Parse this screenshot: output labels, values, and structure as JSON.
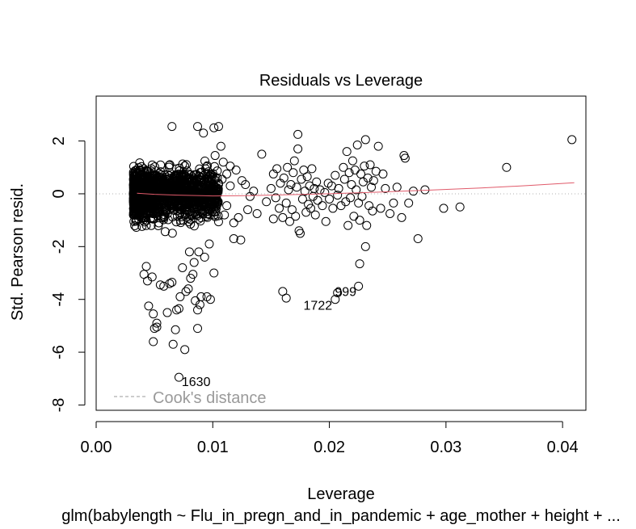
{
  "chart_data": {
    "type": "scatter",
    "title": "Residuals vs Leverage",
    "xlabel": "Leverage",
    "ylabel": "Std. Pearson resid.",
    "subtitle": "glm(babylength ~ Flu_in_pregn_and_in_pandemic + age_mother + height + ...",
    "xlim": [
      0,
      0.042
    ],
    "ylim": [
      -8.2,
      3.7
    ],
    "x_ticks": [
      0.0,
      0.01,
      0.02,
      0.03,
      0.04
    ],
    "x_tick_labels": [
      "0.00",
      "0.01",
      "0.02",
      "0.03",
      "0.04"
    ],
    "y_ticks": [
      -8,
      -6,
      -4,
      -2,
      0,
      2
    ],
    "y_tick_labels": [
      "-8",
      "-6",
      "-4",
      "-2",
      "0",
      "2"
    ],
    "grid": false,
    "legend": {
      "position": "bottom-left",
      "label": "Cook's distance",
      "style": "dashed",
      "color": "#9a9a9a"
    },
    "reference_lines": {
      "h": 0,
      "v": 0,
      "style": "dotted",
      "color": "#b0b0b0"
    },
    "smooth": {
      "color": "#e05a6a",
      "x": [
        0.0035,
        0.005,
        0.007,
        0.01,
        0.013,
        0.016,
        0.02,
        0.024,
        0.028,
        0.033,
        0.037,
        0.041
      ],
      "y": [
        0.02,
        -0.02,
        -0.05,
        -0.08,
        -0.07,
        -0.04,
        0.0,
        0.06,
        0.13,
        0.22,
        0.31,
        0.42
      ]
    },
    "cloud": {
      "description_free": true,
      "n": 1400,
      "x_range": [
        0.0032,
        0.0105
      ],
      "y_center": 0.0,
      "y_sd": 0.85,
      "y_clip": [
        -2.4,
        2.6
      ]
    },
    "points": [
      [
        0.0041,
        -3.05
      ],
      [
        0.0043,
        -2.75
      ],
      [
        0.0044,
        -3.3
      ],
      [
        0.0045,
        -4.25
      ],
      [
        0.0048,
        -3.15
      ],
      [
        0.0049,
        -4.55
      ],
      [
        0.005,
        -5.1
      ],
      [
        0.0052,
        -4.9
      ],
      [
        0.0055,
        -3.45
      ],
      [
        0.0049,
        -5.6
      ],
      [
        0.0058,
        -3.5
      ],
      [
        0.0061,
        -4.5
      ],
      [
        0.0063,
        -3.4
      ],
      [
        0.0065,
        -3.35
      ],
      [
        0.0066,
        -5.7
      ],
      [
        0.0068,
        -5.15
      ],
      [
        0.0069,
        -4.4
      ],
      [
        0.0071,
        -4.35
      ],
      [
        0.0072,
        -3.9
      ],
      [
        0.0074,
        -2.8
      ],
      [
        0.0076,
        -5.9
      ],
      [
        0.0079,
        -3.6
      ],
      [
        0.0081,
        -3.2
      ],
      [
        0.0083,
        -3.05
      ],
      [
        0.0085,
        -4.05
      ],
      [
        0.0087,
        -4.4
      ],
      [
        0.0087,
        -5.1
      ],
      [
        0.0089,
        -4.2
      ],
      [
        0.009,
        -3.9
      ],
      [
        0.0095,
        -3.9
      ],
      [
        0.0098,
        -4.0
      ],
      [
        0.0101,
        -3.0
      ],
      [
        0.0071,
        -6.95
      ],
      [
        0.0052,
        -5.05
      ],
      [
        0.0077,
        -3.7
      ],
      [
        0.008,
        -2.2
      ],
      [
        0.0084,
        -2.6
      ],
      [
        0.0088,
        -2.2
      ],
      [
        0.0093,
        -2.4
      ],
      [
        0.0097,
        -1.9
      ],
      [
        0.0065,
        2.55
      ],
      [
        0.0087,
        2.55
      ],
      [
        0.0092,
        2.3
      ],
      [
        0.0101,
        2.5
      ],
      [
        0.0105,
        2.55
      ],
      [
        0.0107,
        1.8
      ],
      [
        0.0102,
        1.45
      ],
      [
        0.0109,
        1.2
      ],
      [
        0.0112,
        -0.45
      ],
      [
        0.0115,
        0.3
      ],
      [
        0.0118,
        -1.1
      ],
      [
        0.012,
        0.9
      ],
      [
        0.0122,
        -0.9
      ],
      [
        0.0125,
        0.5
      ],
      [
        0.0128,
        0.35
      ],
      [
        0.013,
        -0.6
      ],
      [
        0.0132,
        -0.1
      ],
      [
        0.0135,
        0.1
      ],
      [
        0.0138,
        -0.75
      ],
      [
        0.0112,
        0.75
      ],
      [
        0.0118,
        -1.7
      ],
      [
        0.0124,
        -1.75
      ],
      [
        0.0115,
        1.05
      ],
      [
        0.011,
        -0.8
      ],
      [
        0.0108,
        0.55
      ],
      [
        0.0142,
        1.5
      ],
      [
        0.0146,
        -0.3
      ],
      [
        0.015,
        0.2
      ],
      [
        0.0152,
        0.75
      ],
      [
        0.0154,
        -0.15
      ],
      [
        0.0155,
        0.95
      ],
      [
        0.0157,
        -0.55
      ],
      [
        0.0158,
        0.4
      ],
      [
        0.016,
        -0.9
      ],
      [
        0.0161,
        0.6
      ],
      [
        0.0163,
        -0.35
      ],
      [
        0.0164,
        1.0
      ],
      [
        0.0165,
        0.15
      ],
      [
        0.0166,
        -1.05
      ],
      [
        0.0167,
        0.35
      ],
      [
        0.0168,
        -0.6
      ],
      [
        0.0169,
        0.8
      ],
      [
        0.017,
        1.25
      ],
      [
        0.0171,
        -0.85
      ],
      [
        0.0172,
        0.25
      ],
      [
        0.0173,
        2.25
      ],
      [
        0.0173,
        1.7
      ],
      [
        0.0174,
        -1.4
      ],
      [
        0.0175,
        -1.5
      ],
      [
        0.0176,
        0.55
      ],
      [
        0.0177,
        -0.2
      ],
      [
        0.0178,
        0.9
      ],
      [
        0.0179,
        0.1
      ],
      [
        0.018,
        -0.7
      ],
      [
        0.0181,
        0.65
      ],
      [
        0.0182,
        -0.4
      ],
      [
        0.0183,
        0.3
      ],
      [
        0.0184,
        -0.55
      ],
      [
        0.0185,
        0.95
      ],
      [
        0.0186,
        -0.1
      ],
      [
        0.0187,
        0.2
      ],
      [
        0.0188,
        -0.8
      ],
      [
        0.0189,
        0.45
      ],
      [
        0.019,
        -0.25
      ],
      [
        0.0192,
        0.15
      ],
      [
        0.0194,
        -0.45
      ],
      [
        0.0196,
        0.05
      ],
      [
        0.0197,
        -1.05
      ],
      [
        0.0199,
        0.4
      ],
      [
        0.02,
        -0.2
      ],
      [
        0.0202,
        0.3
      ],
      [
        0.0203,
        -0.55
      ],
      [
        0.0205,
        0.7
      ],
      [
        0.0207,
        -0.05
      ],
      [
        0.0208,
        0.2
      ],
      [
        0.021,
        -0.45
      ],
      [
        0.0212,
        1.0
      ],
      [
        0.0213,
        0.55
      ],
      [
        0.0214,
        -0.3
      ],
      [
        0.0215,
        1.6
      ],
      [
        0.0216,
        -1.2
      ],
      [
        0.0217,
        0.8
      ],
      [
        0.0218,
        -0.15
      ],
      [
        0.0219,
        0.35
      ],
      [
        0.022,
        1.25
      ],
      [
        0.0221,
        -0.85
      ],
      [
        0.0222,
        0.9
      ],
      [
        0.0223,
        0.15
      ],
      [
        0.0224,
        1.85
      ],
      [
        0.0225,
        -0.35
      ],
      [
        0.0226,
        -1.0
      ],
      [
        0.0227,
        0.75
      ],
      [
        0.0228,
        -0.1
      ],
      [
        0.0229,
        0.45
      ],
      [
        0.023,
        1.05
      ],
      [
        0.0231,
        2.05
      ],
      [
        0.0232,
        -1.2
      ],
      [
        0.0233,
        0.6
      ],
      [
        0.0234,
        -0.45
      ],
      [
        0.0235,
        1.1
      ],
      [
        0.0236,
        0.25
      ],
      [
        0.0237,
        -0.65
      ],
      [
        0.0238,
        0.5
      ],
      [
        0.024,
        0.85
      ],
      [
        0.0242,
        1.8
      ],
      [
        0.0244,
        -0.55
      ],
      [
        0.0246,
        0.75
      ],
      [
        0.0248,
        0.2
      ],
      [
        0.0252,
        -0.75
      ],
      [
        0.0255,
        -0.35
      ],
      [
        0.0258,
        0.25
      ],
      [
        0.0262,
        -0.9
      ],
      [
        0.0264,
        1.45
      ],
      [
        0.0265,
        1.35
      ],
      [
        0.0268,
        -0.35
      ],
      [
        0.0272,
        0.1
      ],
      [
        0.0276,
        -1.7
      ],
      [
        0.0282,
        0.15
      ],
      [
        0.0298,
        -0.55
      ],
      [
        0.0312,
        -0.5
      ],
      [
        0.0352,
        1.0
      ],
      [
        0.0408,
        2.05
      ],
      [
        0.016,
        -3.7
      ],
      [
        0.0163,
        -3.95
      ],
      [
        0.0205,
        -4.0
      ],
      [
        0.0207,
        -3.75
      ],
      [
        0.0225,
        -3.5
      ],
      [
        0.0226,
        -2.65
      ],
      [
        0.0231,
        -2.0
      ],
      [
        0.0152,
        -0.95
      ]
    ],
    "labels": [
      {
        "x": 0.0072,
        "y": -6.95,
        "text": "1630"
      },
      {
        "x": 0.0208,
        "y": -4.0,
        "text": "1722"
      },
      {
        "x": 0.0226,
        "y": -3.5,
        "text": "999"
      }
    ]
  }
}
